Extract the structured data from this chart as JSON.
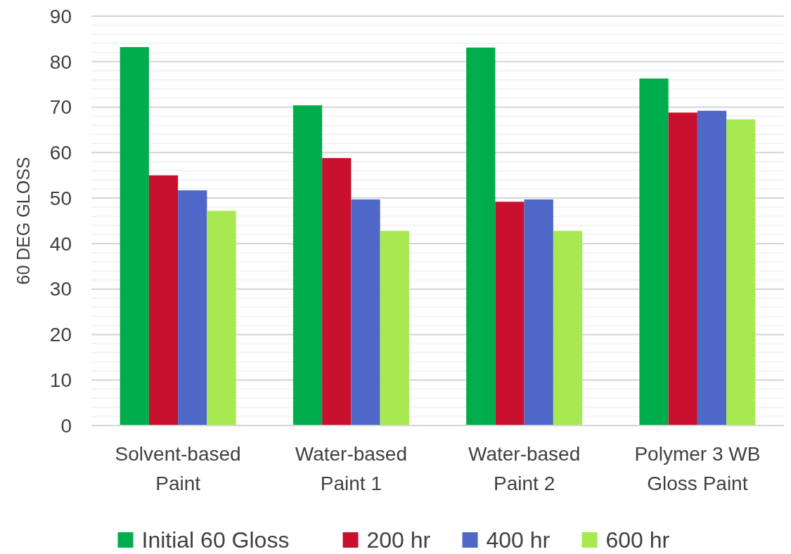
{
  "chart_data": {
    "type": "bar",
    "ylabel": "60 DEG GLOSS",
    "categories": [
      "Solvent-based Paint",
      "Water-based Paint 1",
      "Water-based Paint 2",
      "Polymer 3 WB Gloss Paint"
    ],
    "series": [
      {
        "name": "Initial 60 Gloss",
        "color": "#00ad4d",
        "values": [
          83.2,
          70.4,
          83.1,
          76.3
        ]
      },
      {
        "name": "200 hr",
        "color": "#c8102e",
        "values": [
          55.0,
          58.8,
          49.2,
          68.8
        ]
      },
      {
        "name": "400 hr",
        "color": "#4f68c8",
        "values": [
          51.7,
          49.7,
          49.7,
          69.2
        ]
      },
      {
        "name": "600 hr",
        "color": "#a8e952",
        "values": [
          47.2,
          42.8,
          42.8,
          67.3
        ]
      }
    ],
    "ylim": [
      0,
      90
    ],
    "yticks": [
      0,
      {
        "value": 2,
        "label": null
      },
      {
        "value": 4,
        "label": null
      },
      {
        "value": 6,
        "label": null
      },
      {
        "value": 8,
        "label": null
      },
      10,
      {
        "value": 12,
        "label": null
      },
      {
        "value": 14,
        "label": null
      },
      {
        "value": 16,
        "label": null
      },
      {
        "value": 18,
        "label": null
      },
      20,
      {
        "value": 22,
        "label": null
      },
      {
        "value": 24,
        "label": null
      },
      {
        "value": 26,
        "label": null
      },
      {
        "value": 28,
        "label": null
      },
      30,
      {
        "value": 32,
        "label": null
      },
      {
        "value": 34,
        "label": null
      },
      {
        "value": 36,
        "label": null
      },
      {
        "value": 38,
        "label": null
      },
      40,
      {
        "value": 42,
        "label": null
      },
      {
        "value": 44,
        "label": null
      },
      {
        "value": 46,
        "label": null
      },
      {
        "value": 48,
        "label": null
      },
      50,
      {
        "value": 52,
        "label": null
      },
      {
        "value": 54,
        "label": null
      },
      {
        "value": 56,
        "label": null
      },
      {
        "value": 58,
        "label": null
      },
      60,
      {
        "value": 62,
        "label": null
      },
      {
        "value": 64,
        "label": null
      },
      {
        "value": 66,
        "label": null
      },
      {
        "value": 68,
        "label": null
      },
      70,
      {
        "value": 72,
        "label": null
      },
      {
        "value": 74,
        "label": null
      },
      {
        "value": 76,
        "label": null
      },
      {
        "value": 78,
        "label": null
      },
      80,
      {
        "value": 82,
        "label": null
      },
      {
        "value": 84,
        "label": null
      },
      {
        "value": 86,
        "label": null
      },
      {
        "value": 88,
        "label": null
      },
      90
    ],
    "grid": "y",
    "legend": "bottom"
  }
}
